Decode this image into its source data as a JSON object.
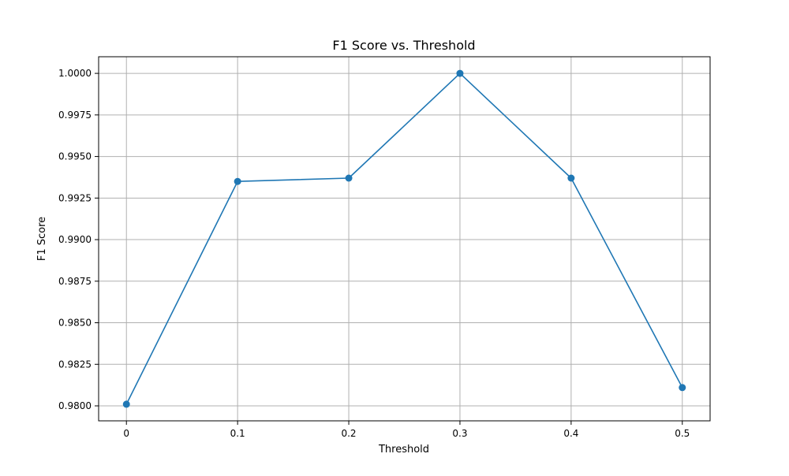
{
  "chart_data": {
    "type": "line",
    "title": "F1 Score vs. Threshold",
    "xlabel": "Threshold",
    "ylabel": "F1 Score",
    "x": [
      0,
      0.1,
      0.2,
      0.3,
      0.4,
      0.5
    ],
    "x_tick_labels": [
      "0",
      "0.1",
      "0.2",
      "0.3",
      "0.4",
      "0.5"
    ],
    "series": [
      {
        "values": [
          0.9801,
          0.9935,
          0.9937,
          1.0,
          0.9937,
          0.9811
        ],
        "color": "#1f77b4",
        "marker": "circle"
      }
    ],
    "xlim": [
      -0.025,
      0.525
    ],
    "ylim": [
      0.9791,
      1.001
    ],
    "y_ticks": [
      0.98,
      0.9825,
      0.985,
      0.9875,
      0.99,
      0.9925,
      0.995,
      0.9975,
      1.0
    ],
    "y_tick_labels": [
      "0.9800",
      "0.9825",
      "0.9850",
      "0.9875",
      "0.9900",
      "0.9925",
      "0.9950",
      "0.9975",
      "1.0000"
    ],
    "grid": true,
    "colors": {
      "line": "#1f77b4",
      "grid": "#b0b0b0",
      "axes": "#000000"
    }
  }
}
